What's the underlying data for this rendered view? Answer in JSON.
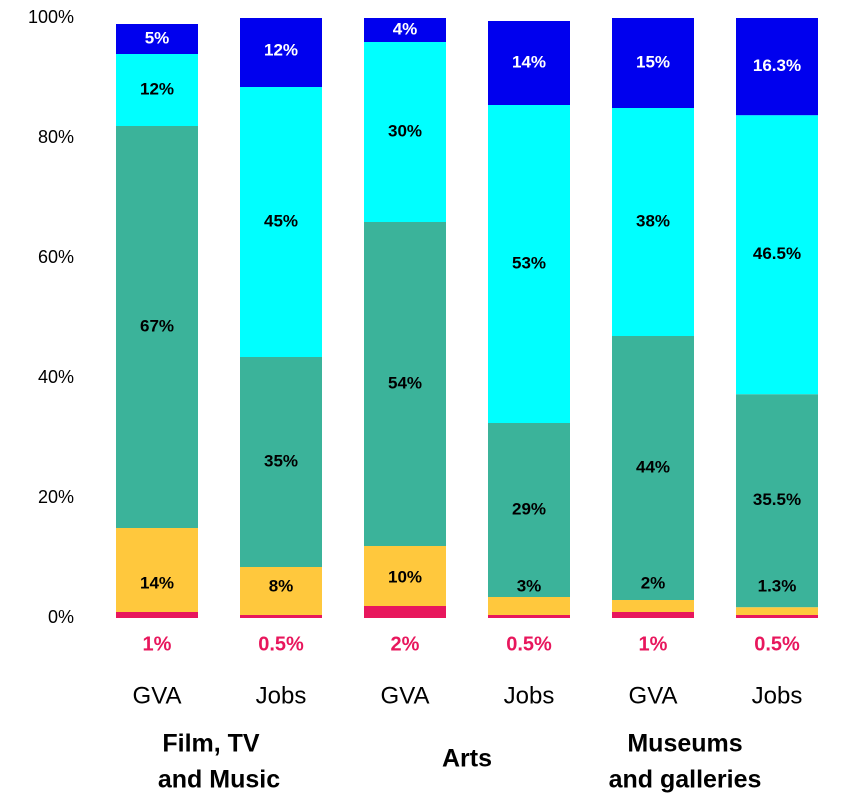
{
  "chart_data": {
    "type": "stacked_bar",
    "categories": [
      "GVA",
      "Jobs",
      "GVA",
      "Jobs",
      "GVA",
      "Jobs"
    ],
    "groups": [
      [
        "Film, TV",
        "and Music"
      ],
      [
        "Arts"
      ],
      [
        "Museums",
        "and galleries"
      ]
    ],
    "series": [
      {
        "color": "#e8175d",
        "values": [
          1,
          0.5,
          2,
          0.5,
          1,
          0.5
        ],
        "value_labels": [
          "1%",
          "0.5%",
          "2%",
          "0.5%",
          "1%",
          "0.5%"
        ]
      },
      {
        "color": "#ffc83d",
        "values": [
          14,
          8,
          10,
          3,
          2,
          1.3
        ],
        "value_labels": [
          "14%",
          "8%",
          "10%",
          "3%",
          "2%",
          "1.3%"
        ]
      },
      {
        "color": "#3bb39a",
        "values": [
          67,
          35,
          54,
          29,
          44,
          35.5
        ],
        "value_labels": [
          "67%",
          "35%",
          "54%",
          "29%",
          "44%",
          "35.5%"
        ]
      },
      {
        "color": "#00ffff",
        "values": [
          12,
          45,
          30,
          53,
          38,
          46.5
        ],
        "value_labels": [
          "12%",
          "45%",
          "30%",
          "53%",
          "38%",
          "46.5%"
        ]
      },
      {
        "color": "#0000ee",
        "values": [
          5,
          12,
          4,
          14,
          15,
          16.3
        ],
        "value_labels": [
          "5%",
          "12%",
          "4%",
          "14%",
          "15%",
          "16.3%"
        ]
      }
    ],
    "ylim": [
      0,
      100
    ],
    "yticks": [
      {
        "value": 0,
        "label": "0%"
      },
      {
        "value": 20,
        "label": "20%"
      },
      {
        "value": 40,
        "label": "40%"
      },
      {
        "value": 60,
        "label": "60%"
      },
      {
        "value": 80,
        "label": "80%"
      },
      {
        "value": 100,
        "label": "100%"
      }
    ],
    "grid": false
  }
}
